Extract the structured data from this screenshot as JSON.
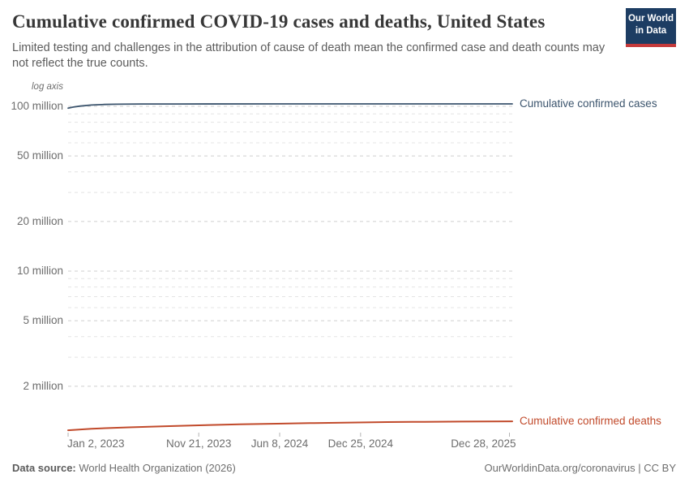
{
  "title": "Cumulative confirmed COVID-19 cases and deaths, United States",
  "subtitle": "Limited testing and challenges in the attribution of cause of death mean the confirmed case and death counts may not reflect the true counts.",
  "logo": {
    "line1": "Our World",
    "line2": "in Data",
    "bg_color": "#1d3d63",
    "accent_color": "#c53a3b"
  },
  "footer": {
    "source_label": "Data source:",
    "source_text": " World Health Organization (2026)",
    "right_text": "OurWorldinData.org/coronavirus | CC BY"
  },
  "chart_data": {
    "type": "line",
    "title": "Cumulative confirmed COVID-19 cases and deaths, United States",
    "legend_position": "right-of-line-ends",
    "grid": true,
    "y_axis": {
      "scale": "log",
      "log_axis_label": "log axis",
      "ylim": [
        1900000,
        110000000
      ],
      "ticks": [
        {
          "value": 100000000,
          "label": "100 million"
        },
        {
          "value": 50000000,
          "label": "50 million"
        },
        {
          "value": 20000000,
          "label": "20 million"
        },
        {
          "value": 10000000,
          "label": "10 million"
        },
        {
          "value": 5000000,
          "label": "5 million"
        },
        {
          "value": 2000000,
          "label": "2 million"
        }
      ],
      "minor_ticks": [
        90000000,
        80000000,
        70000000,
        60000000,
        40000000,
        30000000,
        9000000,
        8000000,
        7000000,
        6000000,
        4000000,
        3000000
      ]
    },
    "x_axis": {
      "start": "2023-01-02",
      "end": "2026-01-04",
      "ticks": [
        {
          "date": "2023-01-02",
          "label": "Jan 2, 2023"
        },
        {
          "date": "2023-11-21",
          "label": "Nov 21, 2023"
        },
        {
          "date": "2024-06-08",
          "label": "Jun 8, 2024"
        },
        {
          "date": "2024-12-25",
          "label": "Dec 25, 2024"
        },
        {
          "date": "2025-12-28",
          "label": "Dec 28, 2025"
        }
      ]
    },
    "series": [
      {
        "key": "cases",
        "name": "Cumulative confirmed cases",
        "color": "#3b546d",
        "points": [
          [
            "2023-01-02",
            97500000
          ],
          [
            "2023-01-15",
            99000000
          ],
          [
            "2023-02-01",
            100300000
          ],
          [
            "2023-03-01",
            101800000
          ],
          [
            "2023-04-01",
            102600000
          ],
          [
            "2023-05-01",
            103000000
          ],
          [
            "2023-07-01",
            103300000
          ],
          [
            "2023-10-01",
            103400000
          ],
          [
            "2024-06-01",
            103430000
          ],
          [
            "2026-01-04",
            103450000
          ]
        ]
      },
      {
        "key": "deaths",
        "name": "Cumulative confirmed deaths",
        "color": "#c14a2b",
        "points": [
          [
            "2023-01-02",
            1082000
          ],
          [
            "2023-03-01",
            1105000
          ],
          [
            "2023-06-01",
            1127000
          ],
          [
            "2023-09-01",
            1145000
          ],
          [
            "2023-12-01",
            1160000
          ],
          [
            "2024-03-01",
            1175000
          ],
          [
            "2024-06-01",
            1186000
          ],
          [
            "2024-09-01",
            1196000
          ],
          [
            "2024-12-01",
            1205000
          ],
          [
            "2025-03-01",
            1212000
          ],
          [
            "2025-06-01",
            1217000
          ],
          [
            "2025-09-01",
            1221000
          ],
          [
            "2026-01-04",
            1225000
          ]
        ]
      }
    ]
  }
}
